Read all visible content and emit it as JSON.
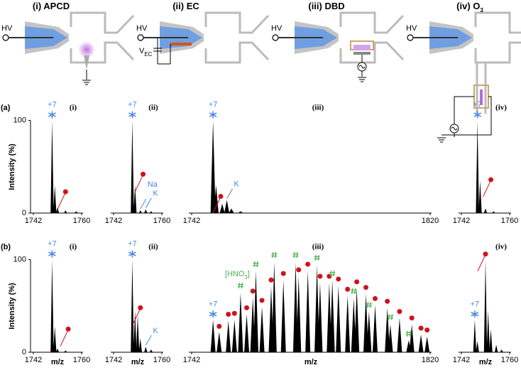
{
  "titles": [
    {
      "text": "(i) APCD"
    },
    {
      "text": "(ii) EC"
    },
    {
      "text": "(iii) DBD"
    },
    {
      "text": "(iv) O",
      "sub": "3"
    }
  ],
  "hv": [
    "HV",
    "HV",
    "HV",
    "HV"
  ],
  "vec": {
    "text": "V",
    "sub": "EC"
  },
  "chart_data": [
    {
      "type": "spectrum",
      "row_label": "(a)",
      "ylabel": "Intensity (%)",
      "label": "(i)",
      "xlim": [
        1742,
        1760
      ],
      "xticks": [
        1742,
        1760
      ],
      "ylim": [
        0,
        115
      ],
      "yticks": [
        0,
        100
      ],
      "peaks": {
        "x": [
          1749,
          1750,
          1751,
          1754,
          1758
        ],
        "values": [
          100,
          30,
          6,
          3,
          2
        ]
      },
      "charge": {
        "label": "+7",
        "x": 1749,
        "y": 100
      },
      "dots": {
        "x": [
          1754
        ],
        "y": [
          23
        ]
      }
    },
    {
      "type": "spectrum",
      "label": "(ii)",
      "xlim": [
        1742,
        1760
      ],
      "xticks": [
        1742,
        1760
      ],
      "ylim": [
        0,
        115
      ],
      "peaks": {
        "x": [
          1749,
          1750,
          1752,
          1754,
          1756
        ],
        "values": [
          100,
          30,
          3,
          4,
          2
        ]
      },
      "charge": {
        "label": "+7",
        "x": 1749,
        "y": 100
      },
      "dots": {
        "x": [
          1753
        ],
        "y": [
          42
        ]
      },
      "ion_labels": [
        {
          "label": "Na",
          "x": 1752,
          "y": 3
        },
        {
          "label": "K",
          "x": 1754,
          "y": 4
        }
      ]
    },
    {
      "type": "spectrum",
      "label": "(iii)",
      "xlim": [
        1742,
        1820
      ],
      "xticks": [
        1742,
        1820
      ],
      "ylim": [
        0,
        115
      ],
      "peaks": {
        "x": [
          1749,
          1750,
          1752,
          1753.5,
          1755,
          1758
        ],
        "values": [
          100,
          30,
          10,
          14,
          5,
          2
        ]
      },
      "charge": {
        "label": "+7",
        "x": 1749,
        "y": 100
      },
      "dots": {
        "x": [
          1751.5
        ],
        "y": [
          18
        ]
      },
      "ion_labels": [
        {
          "label": "K",
          "x": 1753.5,
          "y": 14
        }
      ]
    },
    {
      "type": "spectrum",
      "label": "(iv)",
      "xlim": [
        1742,
        1760
      ],
      "xticks": [
        1742,
        1760
      ],
      "ylim": [
        0,
        115
      ],
      "peaks": {
        "x": [
          1748,
          1749,
          1751,
          1754
        ],
        "values": [
          100,
          35,
          5,
          2
        ]
      },
      "charge": {
        "label": "+7",
        "x": 1748,
        "y": 100
      },
      "dots": {
        "x": [
          1753
        ],
        "y": [
          36
        ]
      }
    },
    {
      "type": "spectrum",
      "row_label": "(b)",
      "ylabel": "Intensity (%)",
      "xlabel": "m/z",
      "label": "(i)",
      "xlim": [
        1742,
        1760
      ],
      "xticks": [
        1742,
        1760
      ],
      "ylim": [
        0,
        115
      ],
      "yticks": [
        0,
        100
      ],
      "peaks": {
        "x": [
          1749,
          1750,
          1751,
          1754
        ],
        "values": [
          100,
          28,
          4,
          2
        ]
      },
      "charge": {
        "label": "+7",
        "x": 1749,
        "y": 100
      },
      "dots": {
        "x": [
          1755
        ],
        "y": [
          25
        ]
      }
    },
    {
      "type": "spectrum",
      "xlabel": "m/z",
      "label": "(ii)",
      "xlim": [
        1742,
        1760
      ],
      "xticks": [
        1742,
        1760
      ],
      "ylim": [
        0,
        115
      ],
      "peaks": {
        "x": [
          1749,
          1750,
          1751,
          1752,
          1754,
          1756
        ],
        "values": [
          100,
          45,
          40,
          15,
          6,
          3
        ]
      },
      "charge": {
        "label": "+7",
        "x": 1749,
        "y": 100
      },
      "dots": {
        "x": [
          1752
        ],
        "y": [
          48
        ]
      },
      "ion_labels": [
        {
          "label": "K",
          "x": 1754,
          "y": 6
        }
      ]
    },
    {
      "type": "spectrum",
      "xlabel": "m/z",
      "label": "(iii)",
      "xlim": [
        1742,
        1820
      ],
      "xticks": [
        1742,
        1820
      ],
      "ylim": [
        0,
        115
      ],
      "peaks": {
        "x": [
          1749,
          1751,
          1754,
          1756,
          1758,
          1760,
          1762,
          1763,
          1765,
          1768,
          1769,
          1772,
          1776,
          1777,
          1780,
          1783,
          1784,
          1787,
          1788,
          1790,
          1793,
          1795,
          1796,
          1799,
          1800,
          1802,
          1806,
          1807,
          1810,
          1813,
          1814,
          1817,
          1819
        ],
        "values": [
          35,
          22,
          34,
          35,
          64,
          41,
          59,
          88,
          49,
          71,
          97,
          78,
          97,
          82,
          88,
          94,
          75,
          75,
          78,
          72,
          61,
          58,
          69,
          63,
          44,
          51,
          48,
          30,
          37,
          13,
          30,
          19,
          17
        ]
      },
      "charge": {
        "label": "+7",
        "x": 1749,
        "y": 35
      },
      "dots": {
        "x": [
          1751,
          1754,
          1756,
          1760,
          1762,
          1765,
          1768,
          1772,
          1777,
          1780,
          1784,
          1787,
          1790,
          1793,
          1796,
          1799,
          1802,
          1806,
          1810,
          1814,
          1817,
          1819
        ],
        "y": [
          28,
          41,
          42,
          48,
          66,
          56,
          78,
          85,
          89,
          95,
          82,
          82,
          79,
          68,
          76,
          70,
          58,
          55,
          44,
          37,
          26,
          24
        ]
      },
      "hashes": {
        "x": [
          1758,
          1763,
          1769,
          1776,
          1783,
          1788,
          1795,
          1800,
          1807,
          1813
        ],
        "y": [
          72,
          95,
          105,
          105,
          102,
          85,
          66,
          51,
          38,
          20
        ]
      },
      "hash_label": {
        "text": "[HNO",
        "sub": "3",
        "suffix": "]"
      }
    },
    {
      "type": "spectrum",
      "xlabel": "m/z",
      "label": "(iv)",
      "xlim": [
        1742,
        1760
      ],
      "xticks": [
        1742,
        1760
      ],
      "ylim": [
        0,
        115
      ],
      "peaks": {
        "x": [
          1747,
          1748,
          1751,
          1752,
          1753,
          1755,
          1757
        ],
        "values": [
          35,
          12,
          100,
          45,
          25,
          8,
          3
        ]
      },
      "charge": {
        "label": "+7",
        "x": 1747,
        "y": 35
      },
      "dots": {
        "x": [
          1751
        ],
        "y": [
          106
        ]
      }
    }
  ]
}
